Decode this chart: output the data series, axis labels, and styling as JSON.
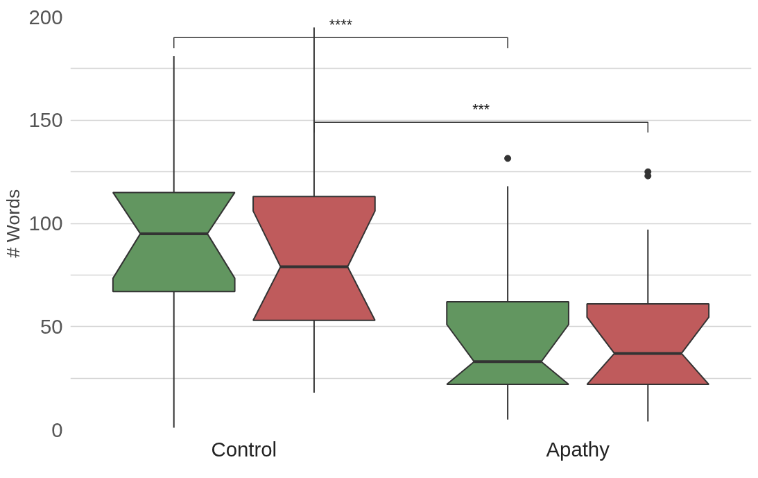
{
  "chart_data": {
    "type": "box",
    "ylabel": "# Words",
    "categories": [
      "Control",
      "Apathy"
    ],
    "series": [
      {
        "color": "#629660",
        "boxes": [
          {
            "low": 1,
            "q1": 67,
            "median": 95,
            "q3": 115,
            "high": 181
          },
          {
            "low": 5,
            "q1": 22,
            "median": 33,
            "q3": 62,
            "high": 118,
            "outliers": [
              131.5
            ]
          }
        ]
      },
      {
        "color": "#bf5b5c",
        "boxes": [
          {
            "low": 18,
            "q1": 53,
            "median": 79,
            "q3": 113,
            "high": 195
          },
          {
            "low": 4,
            "q1": 22,
            "median": 37,
            "q3": 61,
            "high": 97,
            "outliers": [
              125,
              123
            ]
          }
        ]
      }
    ],
    "ylim": [
      0,
      200
    ],
    "yticks": [
      0,
      {
        "value": 25,
        "label": null
      },
      50,
      {
        "value": 75,
        "label": null
      },
      100,
      {
        "value": 125,
        "label": null
      },
      150,
      {
        "value": 175,
        "label": null
      },
      200
    ],
    "grid": "y",
    "annotations": [
      "****",
      "***"
    ]
  }
}
